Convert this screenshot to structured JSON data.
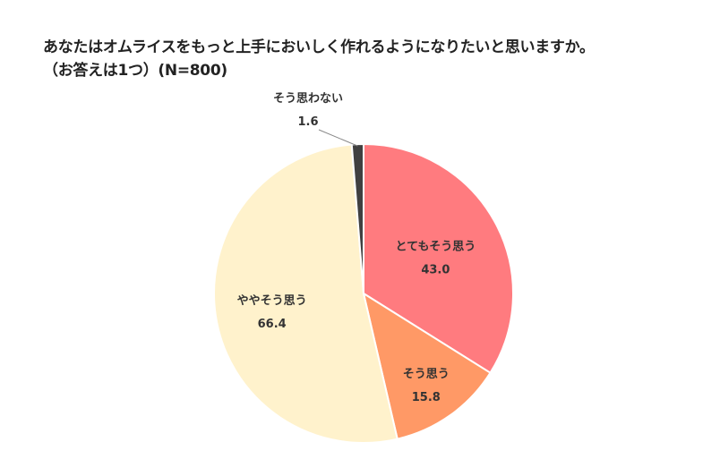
{
  "chart_data": {
    "type": "pie",
    "title": "あなたはオムライスをもっと上手においしく作れるようになりたいと思いますか。",
    "subtitle": "（お答えは1つ）(N=800)",
    "categories": [
      "とてもそう思う",
      "そう思う",
      "ややそう思う",
      "そう思わない"
    ],
    "values": [
      43.0,
      15.8,
      66.4,
      1.6
    ],
    "value_labels": [
      "43.0",
      "15.8",
      "66.4",
      "1.6"
    ],
    "colors": [
      "#ff7b7f",
      "#ff9966",
      "#fff2cc",
      "#404040"
    ],
    "start_angle": "12 o'clock",
    "direction": "clockwise",
    "legend": "none"
  }
}
